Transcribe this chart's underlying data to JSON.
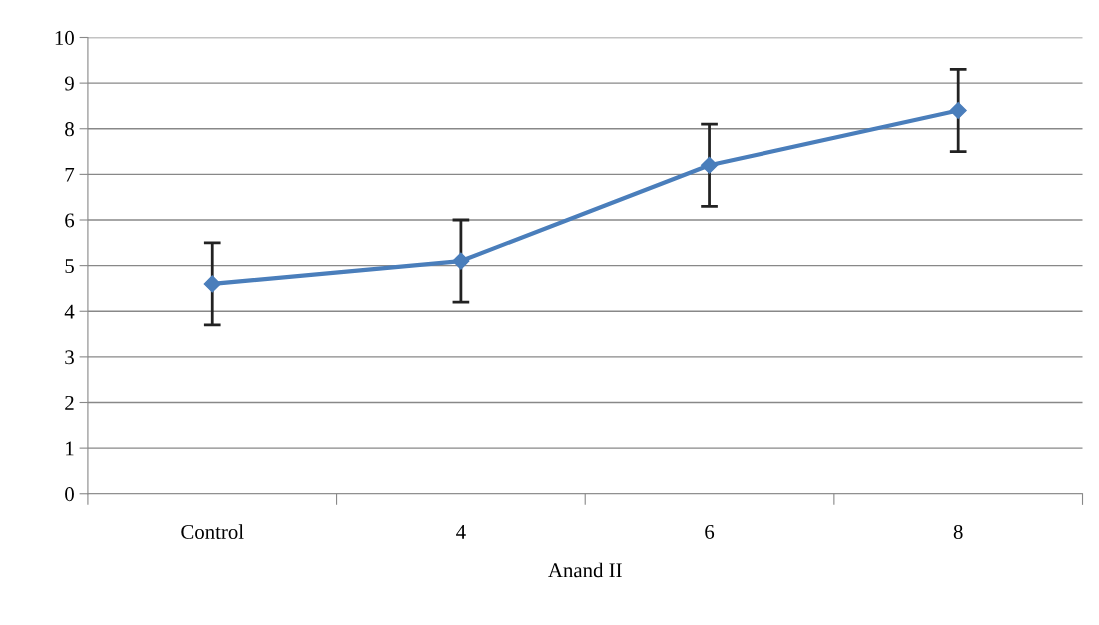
{
  "chart_data": {
    "type": "line",
    "xlabel": "Anand II",
    "categories": [
      "Control",
      "4",
      "6",
      "8"
    ],
    "series": [
      {
        "color": "#4a7ebb",
        "values": [
          4.6,
          5.1,
          7.2,
          8.4
        ],
        "errors": [
          0.9,
          0.9,
          0.9,
          0.9
        ]
      }
    ],
    "ylim": [
      0,
      10
    ],
    "yticks": [
      0,
      1,
      2,
      3,
      4,
      5,
      6,
      7,
      8,
      9,
      10
    ],
    "grid": "y",
    "marker": "diamond",
    "line_style": "solid"
  }
}
